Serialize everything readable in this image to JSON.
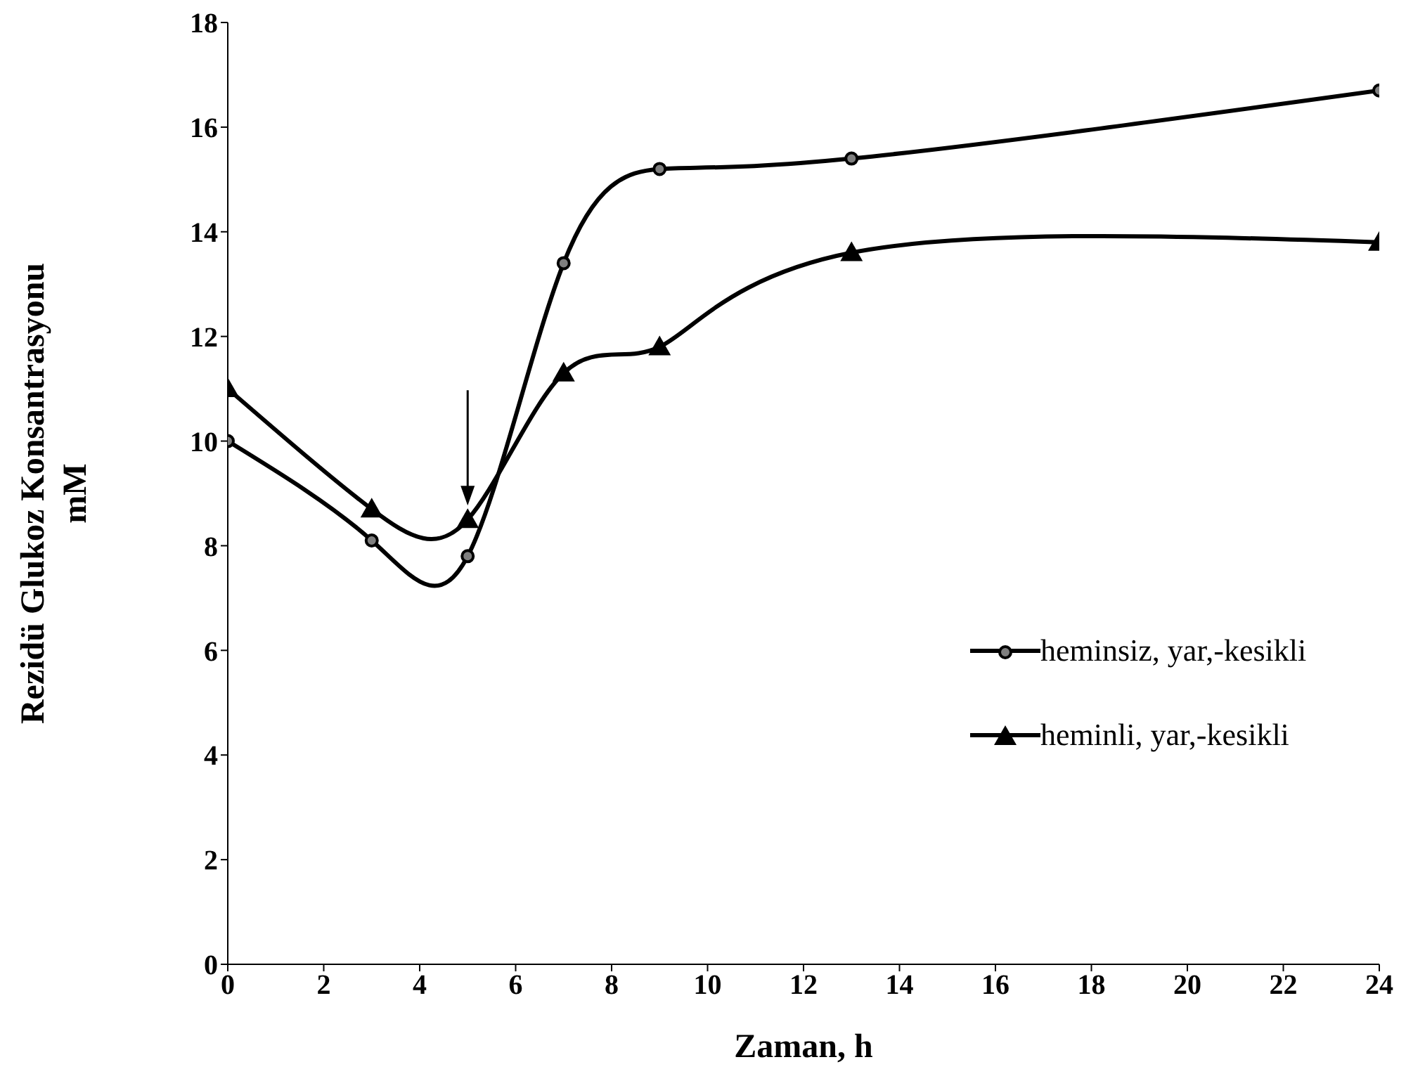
{
  "chart_data": {
    "type": "line",
    "xlabel": "Zaman, h",
    "ylabel": "Rezidü Glukoz Konsantrasyonu\nmM",
    "x": [
      0,
      3,
      5,
      7,
      9,
      13,
      24
    ],
    "series": [
      {
        "name": "heminsiz, yar,-kesikli",
        "color": "#000000",
        "marker": "circle",
        "values": [
          10.0,
          8.1,
          7.8,
          13.4,
          15.2,
          15.4,
          16.7
        ]
      },
      {
        "name": "heminli, yar,-kesikli",
        "color": "#000000",
        "marker": "triangle",
        "values": [
          11.0,
          8.7,
          8.5,
          11.3,
          11.8,
          13.6,
          13.8
        ]
      }
    ],
    "xlim": [
      0,
      24
    ],
    "xticks": [
      0,
      2,
      4,
      6,
      8,
      10,
      12,
      14,
      16,
      18,
      20,
      22,
      24
    ],
    "ylim": [
      0,
      18
    ],
    "yticks": [
      0,
      2,
      4,
      6,
      8,
      10,
      12,
      14,
      16,
      18
    ],
    "grid": false,
    "legend": "bottom right"
  }
}
